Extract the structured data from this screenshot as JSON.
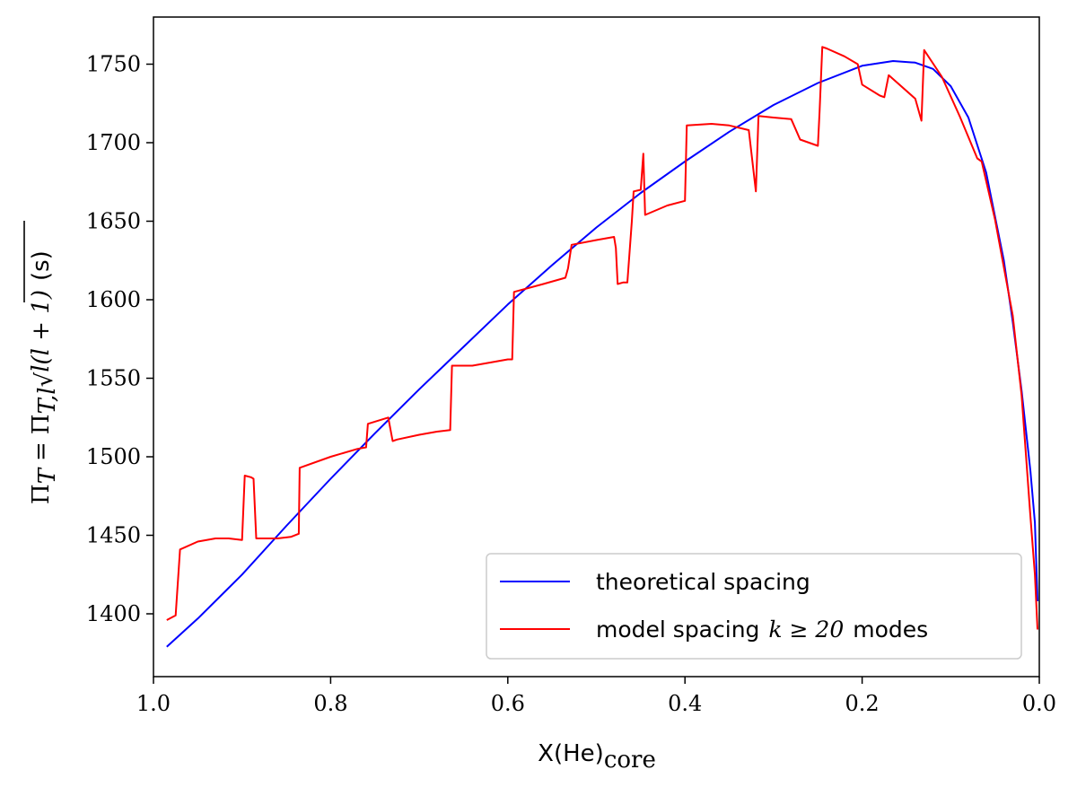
{
  "chart_data": {
    "type": "line",
    "title": "",
    "xlabel": {
      "main": "X(He)",
      "sub": "core"
    },
    "ylabel": {
      "lhs": "Π",
      "lhs_sub": "T",
      "eq": "=",
      "rhs": "Π",
      "rhs_sub": "T,l",
      "sqrt_body": "l(l + 1)",
      "unit": "(s)"
    },
    "xlim": [
      1.0,
      0.0
    ],
    "ylim": [
      1360,
      1780
    ],
    "xticks": [
      1.0,
      0.8,
      0.6,
      0.4,
      0.2,
      0.0
    ],
    "xtick_labels": [
      "1.0",
      "0.8",
      "0.6",
      "0.4",
      "0.2",
      "0.0"
    ],
    "yticks": [
      1400,
      1450,
      1500,
      1550,
      1600,
      1650,
      1700,
      1750
    ],
    "ytick_labels": [
      "1400",
      "1450",
      "1500",
      "1550",
      "1600",
      "1650",
      "1700",
      "1750"
    ],
    "grid": false,
    "legend_position": "lower-right",
    "series": [
      {
        "name": "theoretical spacing",
        "label_text": "theoretical spacing",
        "color": "#0000ff",
        "x": [
          0.985,
          0.95,
          0.9,
          0.85,
          0.8,
          0.75,
          0.7,
          0.65,
          0.6,
          0.55,
          0.5,
          0.45,
          0.4,
          0.35,
          0.3,
          0.25,
          0.2,
          0.165,
          0.14,
          0.12,
          0.1,
          0.08,
          0.06,
          0.04,
          0.03,
          0.02,
          0.01,
          0.005,
          0.002
        ],
        "y": [
          1379,
          1397,
          1425,
          1456,
          1486,
          1515,
          1543,
          1570,
          1597,
          1622,
          1646,
          1668,
          1688,
          1707,
          1724,
          1738,
          1749,
          1752,
          1751,
          1747,
          1736,
          1716,
          1681,
          1625,
          1586,
          1542,
          1491,
          1458,
          1408
        ]
      },
      {
        "name": "model spacing k≥20 modes",
        "label_text": "model spacing",
        "label_math": "k ≥ 20",
        "label_suffix": "modes",
        "color": "#ff0000",
        "x": [
          0.985,
          0.975,
          0.97,
          0.95,
          0.93,
          0.915,
          0.9,
          0.897,
          0.89,
          0.887,
          0.884,
          0.88,
          0.86,
          0.845,
          0.836,
          0.835,
          0.8,
          0.77,
          0.76,
          0.758,
          0.735,
          0.73,
          0.725,
          0.7,
          0.68,
          0.665,
          0.663,
          0.64,
          0.62,
          0.6,
          0.595,
          0.593,
          0.56,
          0.535,
          0.532,
          0.528,
          0.5,
          0.48,
          0.478,
          0.476,
          0.47,
          0.465,
          0.46,
          0.458,
          0.45,
          0.447,
          0.445,
          0.42,
          0.4,
          0.398,
          0.37,
          0.35,
          0.328,
          0.32,
          0.318,
          0.317,
          0.3,
          0.28,
          0.27,
          0.25,
          0.248,
          0.245,
          0.24,
          0.22,
          0.205,
          0.2,
          0.18,
          0.175,
          0.17,
          0.14,
          0.133,
          0.13,
          0.11,
          0.09,
          0.07,
          0.065,
          0.05,
          0.03,
          0.02,
          0.01,
          0.005,
          0.002
        ],
        "y": [
          1396,
          1399,
          1441,
          1446,
          1448,
          1448,
          1447,
          1488,
          1487,
          1486,
          1448,
          1448,
          1448,
          1449,
          1451,
          1493,
          1500,
          1505,
          1506,
          1521,
          1525,
          1510,
          1511,
          1514,
          1516,
          1517,
          1558,
          1558,
          1560,
          1562,
          1562,
          1605,
          1610,
          1614,
          1620,
          1635,
          1638,
          1640,
          1633,
          1610,
          1611,
          1611,
          1650,
          1669,
          1670,
          1693,
          1654,
          1660,
          1663,
          1711,
          1712,
          1711,
          1708,
          1669,
          1700,
          1717,
          1716,
          1715,
          1702,
          1698,
          1720,
          1761,
          1760,
          1755,
          1750,
          1737,
          1730,
          1729,
          1743,
          1728,
          1714,
          1759,
          1742,
          1717,
          1690,
          1688,
          1651,
          1590,
          1539,
          1462,
          1425,
          1390
        ]
      }
    ]
  }
}
